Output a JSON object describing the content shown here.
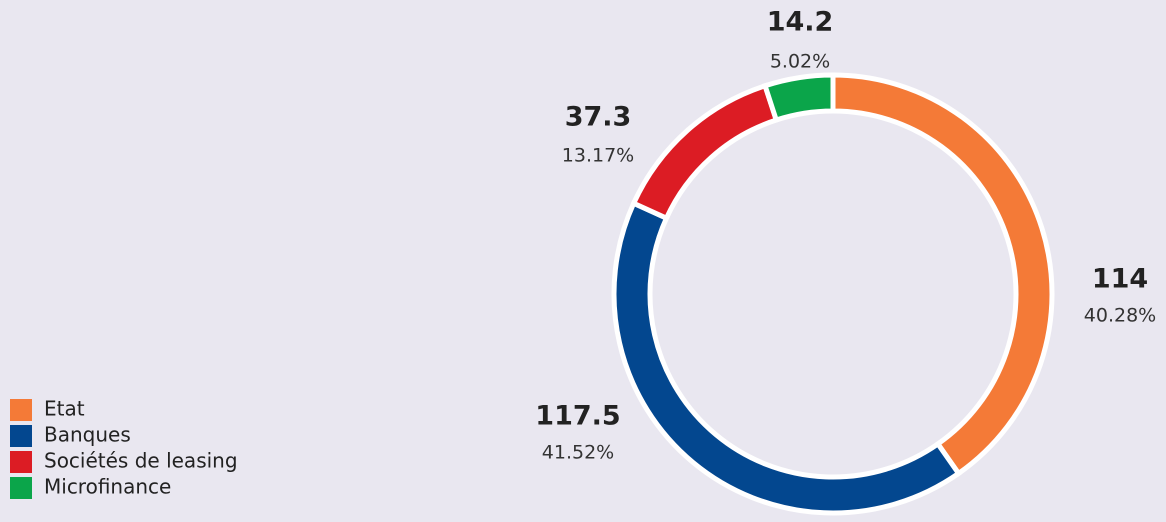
{
  "chart_data": {
    "type": "donut",
    "categories": [
      "Etat",
      "Banques",
      "Sociétés de leasing",
      "Microfinance"
    ],
    "values": [
      114,
      117.5,
      37.3,
      14.2
    ],
    "percents": [
      {
        "value": 40.28,
        "label": "40.28%"
      },
      {
        "value": 41.52,
        "label": "41.52%"
      },
      {
        "value": 13.17,
        "label": "13.17%"
      },
      {
        "value": 5.02,
        "label": "5.02%"
      }
    ],
    "colors": [
      "#f47a37",
      "#03478f",
      "#dc1c24",
      "#0ba54a"
    ],
    "legend": "bottom-left"
  }
}
